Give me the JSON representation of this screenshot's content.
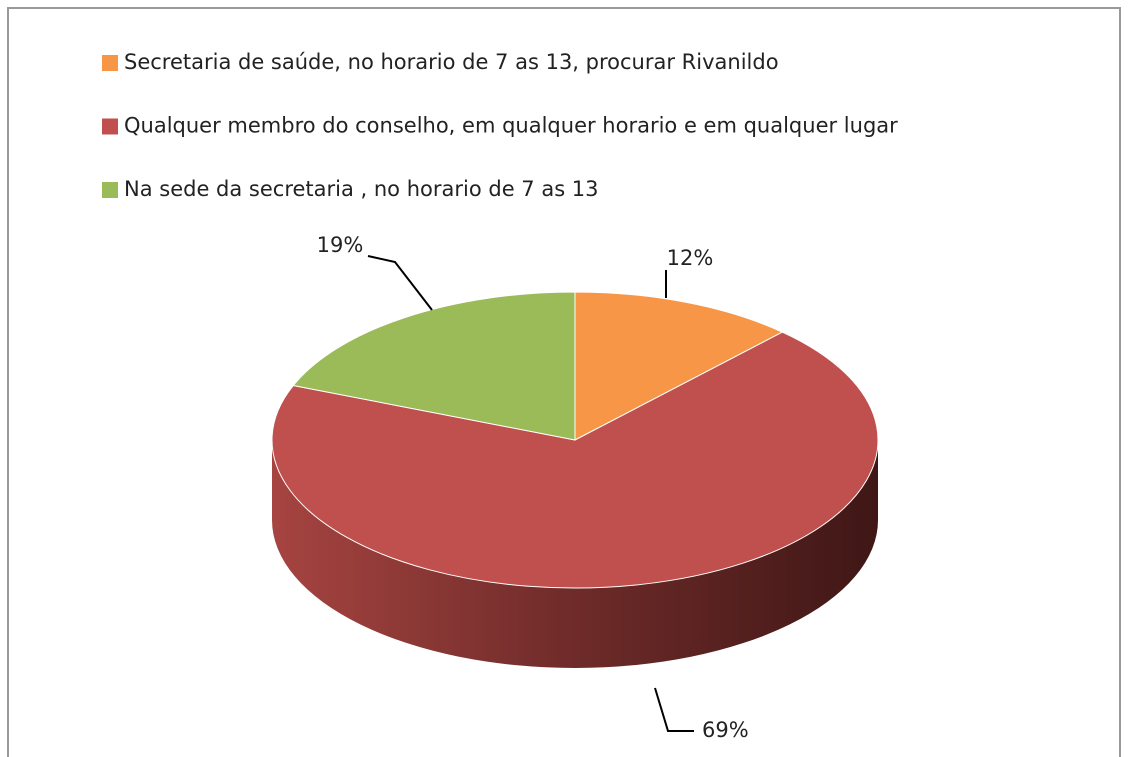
{
  "chart_data": {
    "type": "pie3d",
    "categories": [
      "Secretaria de saúde, no horario de 7 as 13, procurar Rivanildo",
      "Qualquer membro do conselho, em qualquer horario e em qualquer lugar",
      "Na sede da secretaria , no horario de 7 as 13"
    ],
    "values": [
      12,
      69,
      19
    ],
    "value_labels": [
      "12%",
      "69%",
      "19%"
    ],
    "colors": [
      "#f79646",
      "#c0504d",
      "#9bbb59"
    ],
    "legend": "top"
  }
}
